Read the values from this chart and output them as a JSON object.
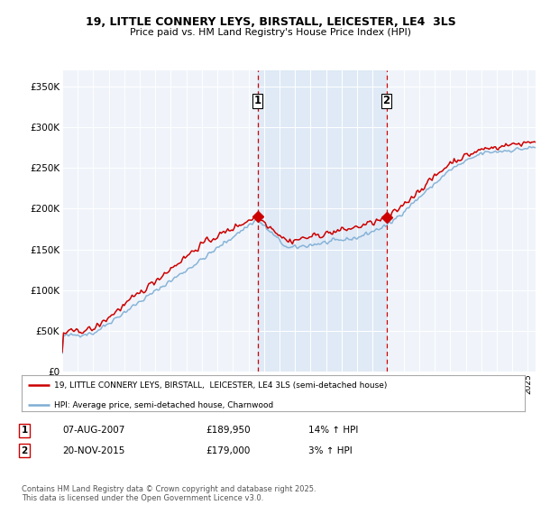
{
  "title": "19, LITTLE CONNERY LEYS, BIRSTALL, LEICESTER, LE4  3LS",
  "subtitle": "Price paid vs. HM Land Registry's House Price Index (HPI)",
  "ylabel_ticks": [
    "£0",
    "£50K",
    "£100K",
    "£150K",
    "£200K",
    "£250K",
    "£300K",
    "£350K"
  ],
  "ytick_vals": [
    0,
    50000,
    100000,
    150000,
    200000,
    250000,
    300000,
    350000
  ],
  "ylim": [
    0,
    370000
  ],
  "bg_color": "#f5f5f5",
  "plot_bg": "#f0f4fa",
  "grid_color": "#ffffff",
  "legend_line1": "19, LITTLE CONNERY LEYS, BIRSTALL,  LEICESTER, LE4 3LS (semi-detached house)",
  "legend_line2": "HPI: Average price, semi-detached house, Charnwood",
  "sale1_date": "07-AUG-2007",
  "sale1_price": "£189,950",
  "sale1_hpi": "14% ↑ HPI",
  "sale2_date": "20-NOV-2015",
  "sale2_price": "£179,000",
  "sale2_hpi": "3% ↑ HPI",
  "footer": "Contains HM Land Registry data © Crown copyright and database right 2025.\nThis data is licensed under the Open Government Licence v3.0.",
  "red_color": "#cc0000",
  "blue_color": "#7dadd4",
  "shading_color": "#dce8f5",
  "vline_color": "#cc0000",
  "marker1_x": 2007.58,
  "marker2_x": 2015.89,
  "xmin": 1995.0,
  "xmax": 2025.5
}
